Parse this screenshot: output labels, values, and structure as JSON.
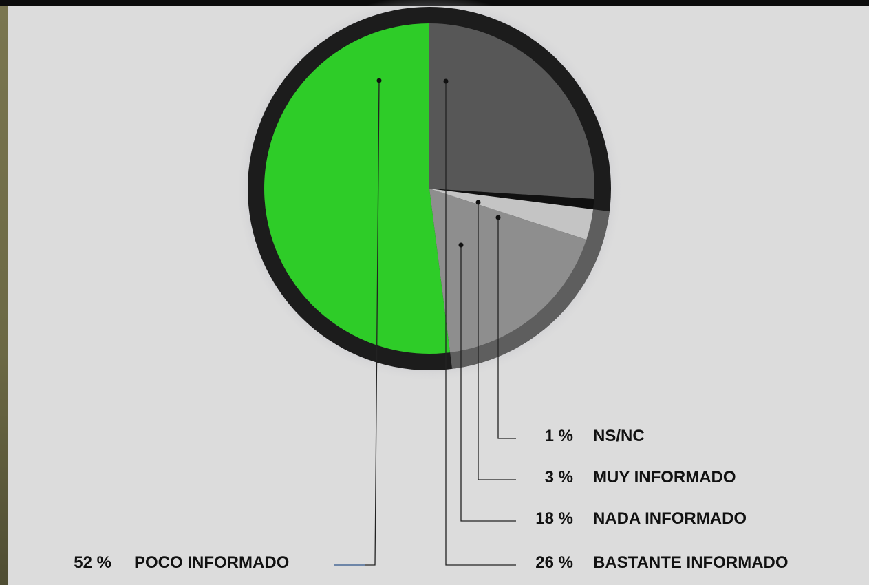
{
  "chart_data": {
    "type": "pie",
    "slices": [
      {
        "label": "BASTANTE INFORMADO",
        "value": 26,
        "value_label": "26 %",
        "color": "#575757"
      },
      {
        "label": "NS/NC",
        "value": 1,
        "value_label": "1 %",
        "color": "#101010"
      },
      {
        "label": "MUY INFORMADO",
        "value": 3,
        "value_label": "3 %",
        "color": "#c4c4c4"
      },
      {
        "label": "NADA INFORMADO",
        "value": 18,
        "value_label": "18 %",
        "color": "#8e8e8e"
      },
      {
        "label": "POCO INFORMADO",
        "value": 52,
        "value_label": "52 %",
        "color": "#2ecc28"
      }
    ]
  }
}
